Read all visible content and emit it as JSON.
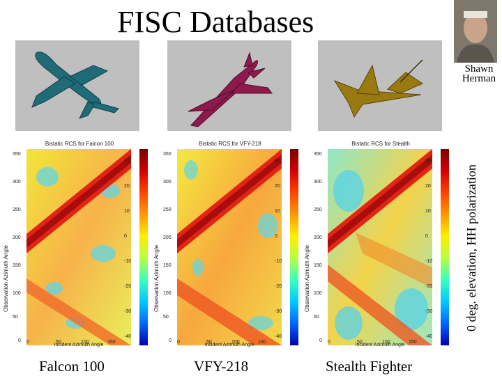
{
  "slide": {
    "title": "FISC Databases",
    "author_line1": "Shawn",
    "author_line2": "Herman",
    "side_label": "0 deg. elevation, HH polarization"
  },
  "panels": [
    {
      "caption": "Falcon 100",
      "plot_title": "Bistatic RCS for Falcon 100",
      "model_color": "#1f6b78"
    },
    {
      "caption": "VFY-218",
      "plot_title": "Bistatic RCS for VFY-218",
      "model_color": "#8c1a4c"
    },
    {
      "caption": "Stealth Fighter",
      "plot_title": "Bistatic RCS for Stealth",
      "model_color": "#9a7a10"
    }
  ],
  "plot": {
    "xlabel": "Incident Azimuth Angle",
    "ylabel": "Observation Azimuth Angle",
    "y_ticks": [
      "350",
      "300",
      "250",
      "200",
      "150",
      "100",
      "50",
      "0"
    ],
    "x_ticks": [
      "0",
      "50",
      "100",
      "150"
    ],
    "colorbar_ticks": [
      "30",
      "20",
      "10",
      "0",
      "-10",
      "-20",
      "-30",
      "-40"
    ]
  }
}
